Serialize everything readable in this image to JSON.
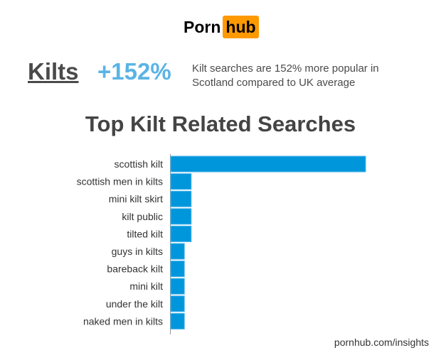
{
  "logo": {
    "part1": "Porn",
    "part2": "hub",
    "accent": "#ff9900"
  },
  "headline": {
    "keyword": "Kilts",
    "change": "+152%",
    "description_line1": "Kilt searches are 152% more popular in",
    "description_line2": "Scotland compared to UK average"
  },
  "chart_data": {
    "type": "bar",
    "orientation": "horizontal",
    "title": "Top Kilt Related Searches",
    "categories": [
      "scottish kilt",
      "scottish men in kilts",
      "mini kilt skirt",
      "kilt public",
      "tilted kilt",
      "guys in kilts",
      "bareback kilt",
      "mini kilt",
      "under the kilt",
      "naked men in kilts"
    ],
    "values": [
      100,
      10.5,
      10.5,
      10.5,
      10.5,
      7,
      7,
      7,
      7,
      7
    ],
    "xlim": [
      0,
      100
    ],
    "bar_color": "#0096dc",
    "grid": false
  },
  "footer": {
    "source": "pornhub.com/insights"
  }
}
